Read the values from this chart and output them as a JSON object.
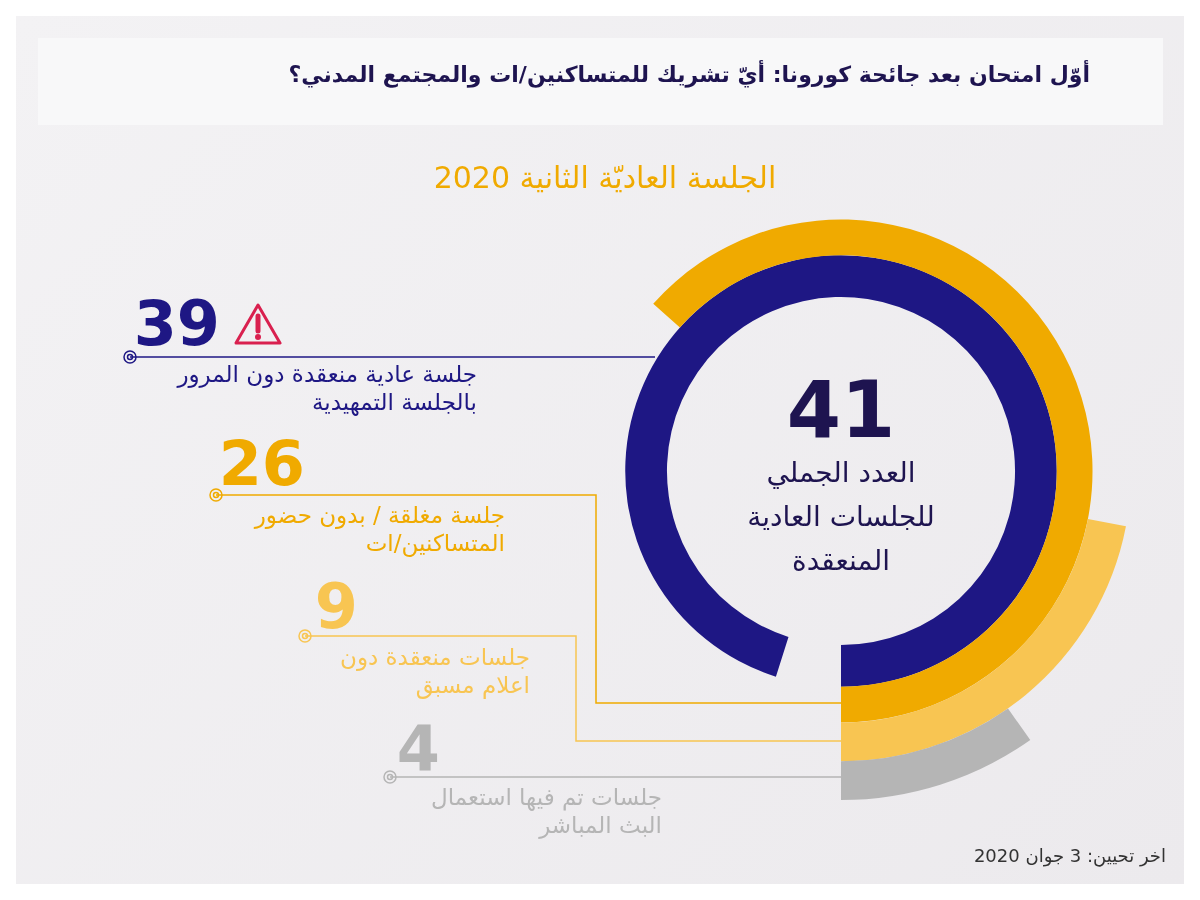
{
  "chart_data": {
    "type": "other",
    "title": "أوّل امتحان بعد جائحة كورونا: أيّ تشريك للمتساكنين/ات والمجتمع المدني؟",
    "subtitle": "الجلسة العاديّة الثانية 2020",
    "categories": [
      "جلسة عادية منعقدة دون المرور بالجلسة التمهيدية",
      "جلسة مغلقة / بدون حضور المتساكنين/ات",
      "جلسات منعقدة دون اعلام مسبق",
      "جلسات تم فيها استعمال البث المباشر"
    ],
    "values": [
      39,
      26,
      9,
      4
    ],
    "colors": [
      "#1e1784",
      "#f0aa00",
      "#f8c552",
      "#b5b5b5"
    ],
    "data_labels": true,
    "annotations": [
      "41",
      "العدد الجملي للجلسات العادية المنعقدة",
      "اخر تحيين: 3 جوان 2020"
    ]
  }
}
